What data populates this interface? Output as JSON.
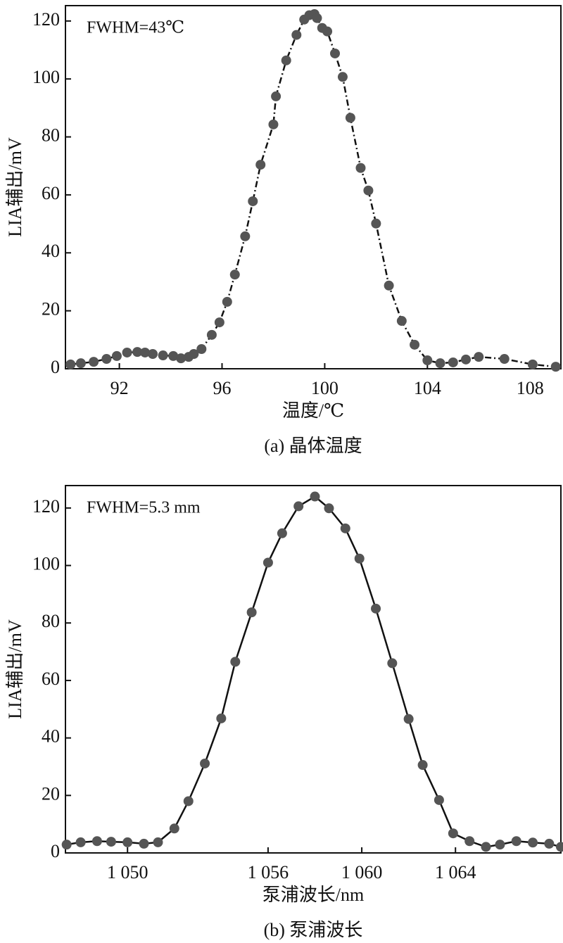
{
  "chart_data": [
    {
      "type": "line",
      "line_style": "dashed",
      "marker_color": "#555555",
      "line_color": "#111111",
      "annotation": "FWHM=43℃",
      "x_label": "温度/℃",
      "y_label": "LIA辅出/mV",
      "caption": "(a) 晶体温度",
      "xlim": [
        89.9,
        109.2
      ],
      "ylim": [
        0,
        125.3
      ],
      "xticks": [
        92,
        96,
        100,
        104,
        108
      ],
      "yticks": [
        0,
        20,
        40,
        60,
        80,
        100,
        120
      ],
      "x": [
        90.1,
        90.5,
        91.0,
        91.5,
        91.9,
        92.3,
        92.7,
        93.0,
        93.3,
        93.7,
        94.1,
        94.4,
        94.7,
        94.9,
        95.2,
        95.6,
        95.9,
        96.2,
        96.5,
        96.9,
        97.2,
        97.5,
        98.0,
        98.1,
        98.5,
        98.9,
        99.2,
        99.4,
        99.6,
        99.7,
        99.9,
        100.1,
        100.4,
        100.7,
        101.0,
        101.4,
        101.7,
        102.0,
        102.5,
        103.0,
        103.5,
        104.0,
        104.5,
        105.0,
        105.5,
        106.0,
        107.0,
        108.1,
        109.0
      ],
      "values": [
        1.5,
        1.9,
        2.4,
        3.4,
        4.4,
        5.6,
        5.8,
        5.6,
        5.1,
        4.6,
        4.4,
        3.6,
        4.1,
        5.1,
        6.8,
        11.7,
        16.0,
        23.1,
        32.5,
        45.7,
        57.8,
        70.4,
        84.3,
        94.0,
        106.4,
        115.2,
        120.5,
        122.0,
        122.4,
        121.0,
        117.6,
        116.4,
        108.8,
        100.7,
        86.6,
        69.3,
        61.5,
        50.1,
        28.7,
        16.5,
        8.3,
        2.9,
        1.9,
        2.2,
        3.2,
        4.1,
        3.4,
        1.5,
        0.7
      ]
    },
    {
      "type": "line",
      "line_style": "solid",
      "marker_color": "#555555",
      "line_color": "#111111",
      "annotation": "FWHM=5.3 mm",
      "x_label": "泵浦波长/nm",
      "y_label": "LIA辅出/mV",
      "caption": "(b) 泵浦波长",
      "xlim": [
        1047.35,
        1068.5
      ],
      "ylim": [
        0,
        127.8
      ],
      "xticks": [
        {
          "value": 1050,
          "label": "1 050"
        },
        {
          "value": 1056,
          "label": "1 056"
        },
        {
          "value": 1060,
          "label": "1 060"
        },
        {
          "value": 1064,
          "label": "1 064"
        }
      ],
      "yticks": [
        0,
        20,
        40,
        60,
        80,
        100,
        120
      ],
      "x": [
        1047.4,
        1048.0,
        1048.7,
        1049.3,
        1050.0,
        1050.7,
        1051.3,
        1052.0,
        1052.6,
        1053.3,
        1054.0,
        1054.6,
        1055.3,
        1056.0,
        1056.6,
        1057.3,
        1058.0,
        1058.6,
        1059.3,
        1059.9,
        1060.6,
        1061.3,
        1062.0,
        1062.6,
        1063.3,
        1063.9,
        1064.6,
        1065.3,
        1065.9,
        1066.6,
        1067.3,
        1068.0,
        1068.5
      ],
      "values": [
        2.9,
        3.7,
        4.1,
        3.9,
        3.7,
        3.2,
        3.7,
        8.5,
        18.0,
        31.1,
        46.8,
        66.5,
        83.7,
        101.0,
        111.2,
        120.6,
        124.0,
        119.9,
        112.9,
        102.4,
        85.0,
        66.0,
        46.6,
        30.6,
        18.4,
        6.8,
        4.1,
        2.1,
        2.9,
        4.1,
        3.6,
        3.2,
        2.1
      ]
    }
  ]
}
